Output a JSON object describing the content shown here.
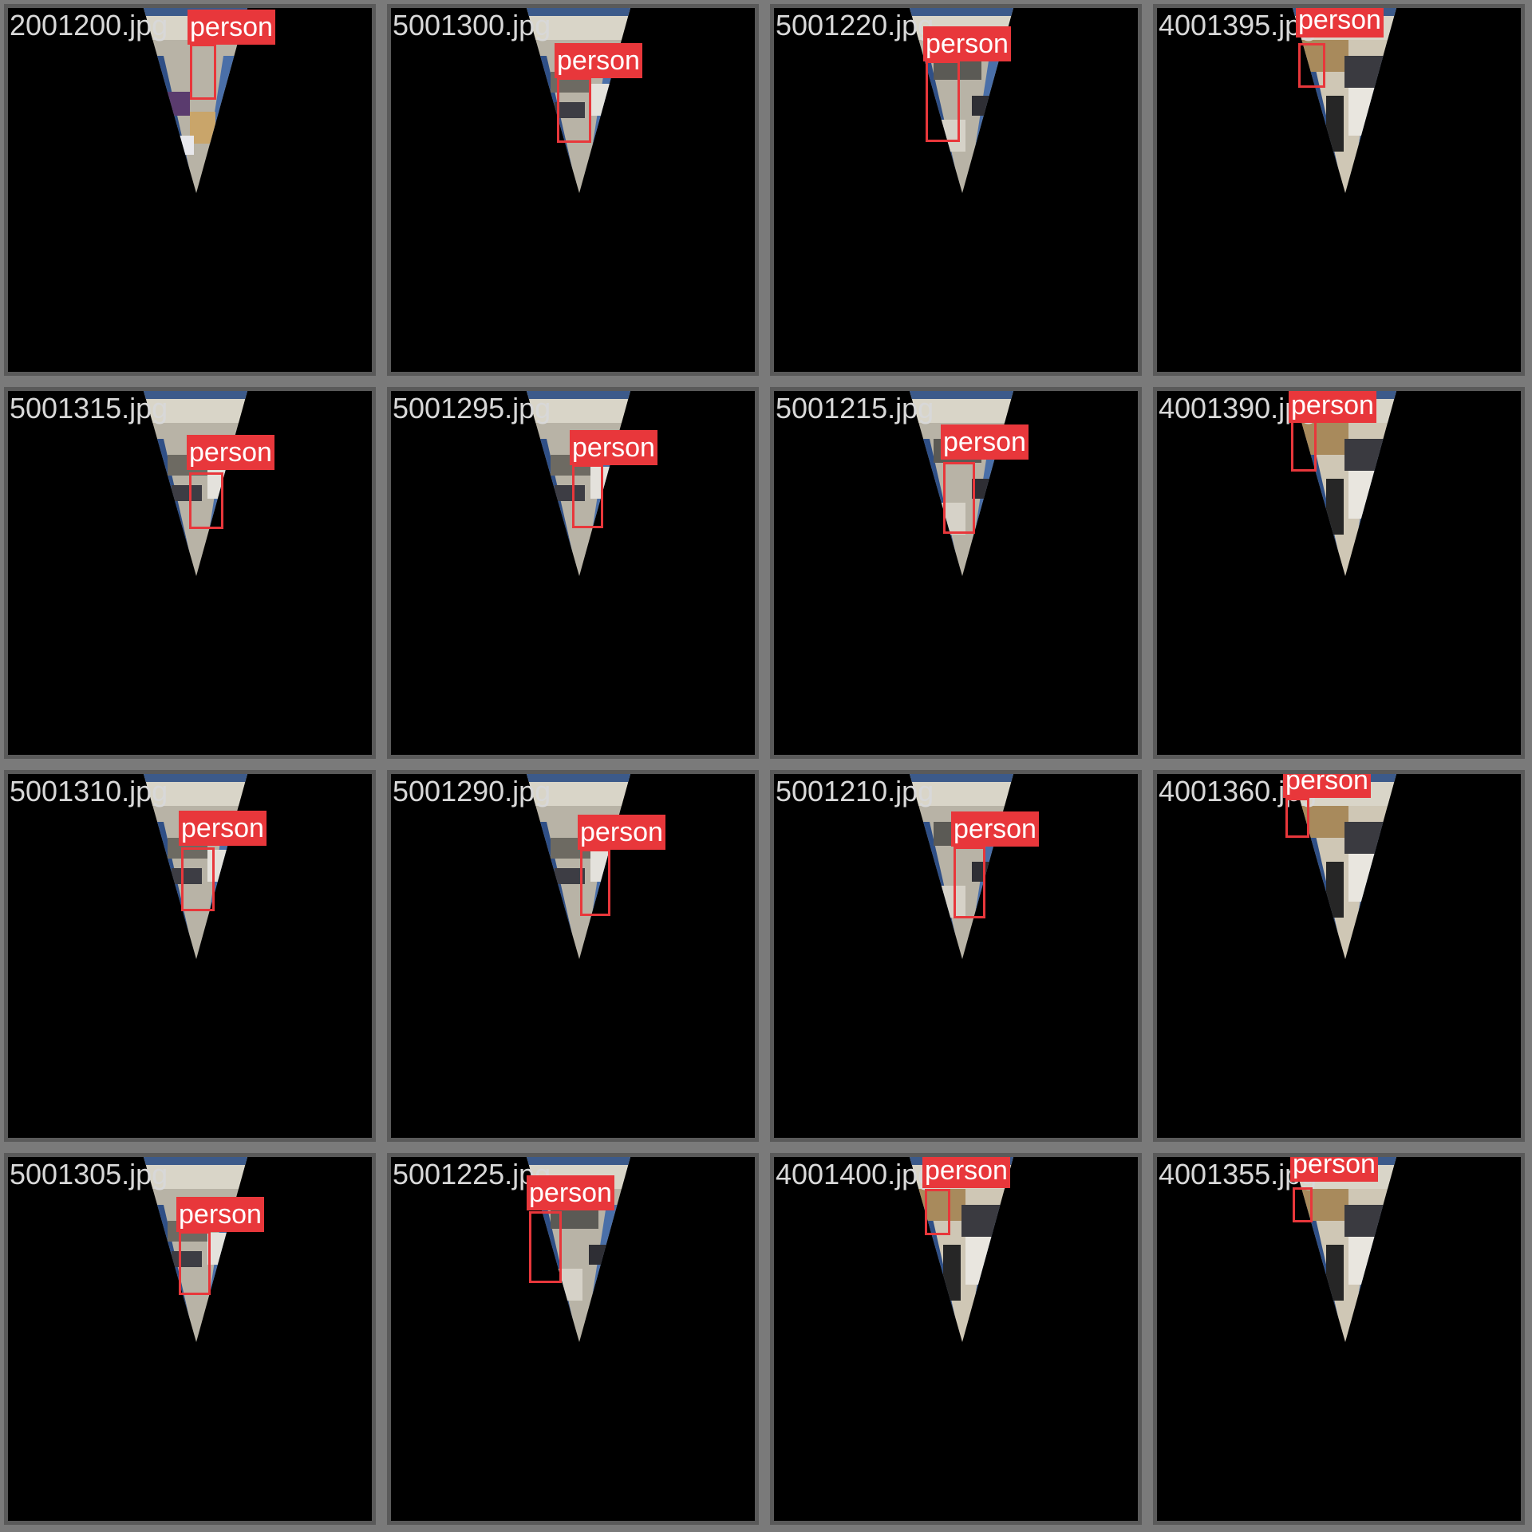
{
  "tiles": [
    {
      "filename": "2001200.jpg",
      "label": "person",
      "variant": "a"
    },
    {
      "filename": "5001300.jpg",
      "label": "person",
      "variant": "b"
    },
    {
      "filename": "5001220.jpg",
      "label": "person",
      "variant": "c"
    },
    {
      "filename": "4001395.jpg",
      "label": "person",
      "variant": "d"
    },
    {
      "filename": "5001315.jpg",
      "label": "person",
      "variant": "b"
    },
    {
      "filename": "5001295.jpg",
      "label": "person",
      "variant": "b"
    },
    {
      "filename": "5001215.jpg",
      "label": "person",
      "variant": "c"
    },
    {
      "filename": "4001390.jpg",
      "label": "person",
      "variant": "d"
    },
    {
      "filename": "5001310.jpg",
      "label": "person",
      "variant": "b"
    },
    {
      "filename": "5001290.jpg",
      "label": "person",
      "variant": "b"
    },
    {
      "filename": "5001210.jpg",
      "label": "person",
      "variant": "c"
    },
    {
      "filename": "4001360.jpg",
      "label": "person",
      "variant": "d"
    },
    {
      "filename": "5001305.jpg",
      "label": "person",
      "variant": "b"
    },
    {
      "filename": "5001225.jpg",
      "label": "person",
      "variant": "c"
    },
    {
      "filename": "4001400.jpg",
      "label": "person",
      "variant": "d"
    },
    {
      "filename": "4001355.jpg",
      "label": "person",
      "variant": "d"
    }
  ],
  "colors": {
    "frame": "#7a7a7a",
    "tile_border": "#5a5a5a",
    "detection": "#e8373b",
    "filename_text": "#d8d8d8"
  }
}
